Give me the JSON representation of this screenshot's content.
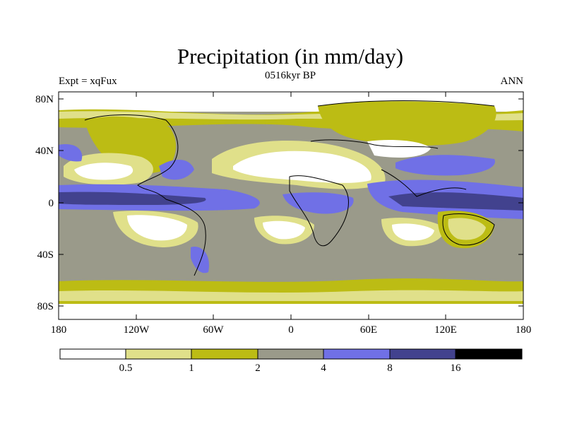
{
  "chart_data": {
    "type": "heatmap",
    "title": "Precipitation (in mm/day)",
    "subtitle_center": "0516kyr BP",
    "subtitle_left": "Expt = xqFux",
    "subtitle_right": "ANN",
    "x_ticks": [
      "180",
      "120W",
      "60W",
      "0",
      "60E",
      "120E",
      "180"
    ],
    "y_ticks": [
      "80N",
      "40N",
      "0",
      "40S",
      "80S"
    ],
    "xlim": [
      -180,
      180
    ],
    "ylim": [
      -90,
      90
    ],
    "colorbar": {
      "levels": [
        "0.5",
        "1",
        "2",
        "4",
        "8",
        "16"
      ],
      "colors": [
        "#ffffff",
        "#e0e08a",
        "#bcbc14",
        "#9a9a8a",
        "#7070e6",
        "#42428e",
        "#000000"
      ]
    }
  }
}
